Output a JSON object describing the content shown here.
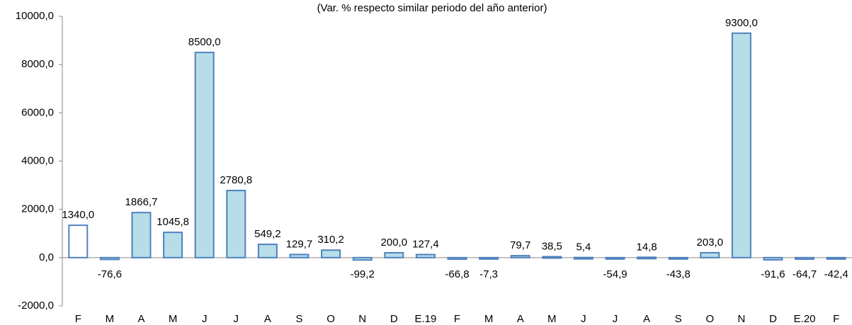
{
  "chart_data": {
    "type": "bar",
    "title": "(Var. % respecto similar periodo del año anterior)",
    "categories": [
      "F",
      "M",
      "A",
      "M",
      "J",
      "J",
      "A",
      "S",
      "O",
      "N",
      "D",
      "E.19",
      "F",
      "M",
      "A",
      "M",
      "J",
      "J",
      "A",
      "S",
      "O",
      "N",
      "D",
      "E.20",
      "F"
    ],
    "values": [
      1340.0,
      -76.6,
      1866.7,
      1045.8,
      8500.0,
      2780.8,
      549.2,
      129.7,
      310.2,
      -99.2,
      200.0,
      127.4,
      -66.8,
      -7.3,
      79.7,
      38.5,
      5.4,
      -54.9,
      14.8,
      -43.8,
      203.0,
      9300.0,
      -91.6,
      -64.7,
      -42.4
    ],
    "value_labels": [
      "1340,0",
      "-76,6",
      "1866,7",
      "1045,8",
      "8500,0",
      "2780,8",
      "549,2",
      "129,7",
      "310,2",
      "-99,2",
      "200,0",
      "127,4",
      "-66,8",
      "-7,3",
      "79,7",
      "38,5",
      "5,4",
      "-54,9",
      "14,8",
      "-43,8",
      "203,0",
      "9300,0",
      "-91,6",
      "-64,7",
      "-42,4"
    ],
    "colors": [
      "#ffffff",
      "#b7dde8",
      "#b7dde8",
      "#b7dde8",
      "#b7dde8",
      "#b7dde8",
      "#b7dde8",
      "#b7dde8",
      "#b7dde8",
      "#b7dde8",
      "#b7dde8",
      "#b7dde8",
      "#b7dde8",
      "#b7dde8",
      "#b7dde8",
      "#b7dde8",
      "#b7dde8",
      "#b7dde8",
      "#b7dde8",
      "#b7dde8",
      "#b7dde8",
      "#b7dde8",
      "#b7dde8",
      "#b7dde8",
      "#b7dde8"
    ],
    "edge_color": "#4f81bd",
    "ylim": [
      -2000,
      10000
    ],
    "yticks": [
      {
        "value": -2000,
        "label": "-2000,0"
      },
      {
        "value": 0,
        "label": "0,0"
      },
      {
        "value": 2000,
        "label": "2000,0"
      },
      {
        "value": 4000,
        "label": "4000,0"
      },
      {
        "value": 6000,
        "label": "6000,0"
      },
      {
        "value": 8000,
        "label": "8000,0"
      },
      {
        "value": 10000,
        "label": "10000,0"
      }
    ],
    "grid": false
  }
}
